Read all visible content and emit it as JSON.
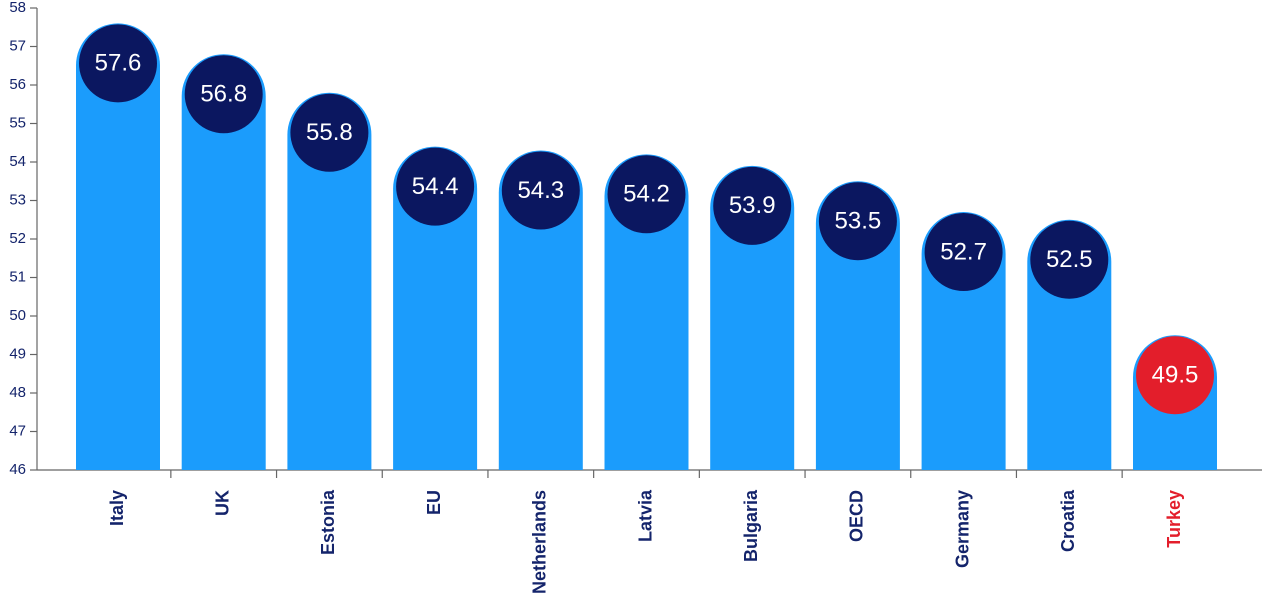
{
  "chart_data": {
    "type": "bar",
    "categories": [
      "Italy",
      "UK",
      "Estonia",
      "EU",
      "Netherlands",
      "Latvia",
      "Bulgaria",
      "OECD",
      "Germany",
      "Croatia",
      "Turkey"
    ],
    "values": [
      57.6,
      56.8,
      55.8,
      54.4,
      54.3,
      54.2,
      53.9,
      53.5,
      52.7,
      52.5,
      49.5
    ],
    "color": "#1b9cfc",
    "marker_colors": [
      "#0b1760",
      "#0b1760",
      "#0b1760",
      "#0b1760",
      "#0b1760",
      "#0b1760",
      "#0b1760",
      "#0b1760",
      "#0b1760",
      "#0b1760",
      "#e31e2b"
    ],
    "category_label_colors": [
      "#14246b",
      "#14246b",
      "#14246b",
      "#14246b",
      "#14246b",
      "#14246b",
      "#14246b",
      "#14246b",
      "#14246b",
      "#14246b",
      "#e31e2b"
    ],
    "ylim": [
      46,
      58
    ],
    "yticks": [
      46,
      47,
      48,
      49,
      50,
      51,
      52,
      53,
      54,
      55,
      56,
      57,
      58
    ]
  }
}
